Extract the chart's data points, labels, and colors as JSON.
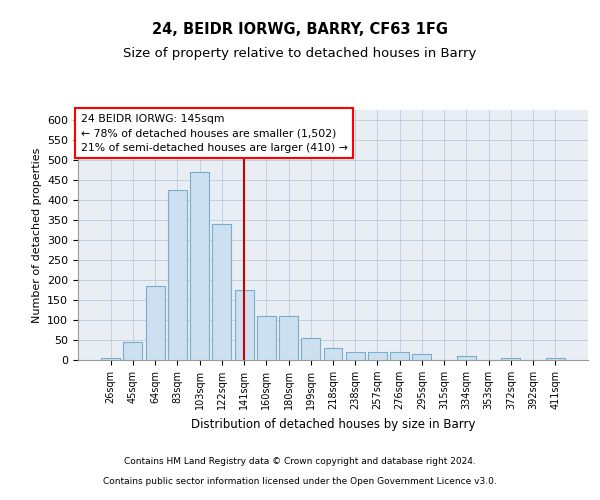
{
  "title1": "24, BEIDR IORWG, BARRY, CF63 1FG",
  "title2": "Size of property relative to detached houses in Barry",
  "xlabel": "Distribution of detached houses by size in Barry",
  "ylabel": "Number of detached properties",
  "categories": [
    "26sqm",
    "45sqm",
    "64sqm",
    "83sqm",
    "103sqm",
    "122sqm",
    "141sqm",
    "160sqm",
    "180sqm",
    "199sqm",
    "218sqm",
    "238sqm",
    "257sqm",
    "276sqm",
    "295sqm",
    "315sqm",
    "334sqm",
    "353sqm",
    "372sqm",
    "392sqm",
    "411sqm"
  ],
  "values": [
    5,
    45,
    185,
    425,
    470,
    340,
    175,
    110,
    110,
    55,
    30,
    20,
    20,
    20,
    15,
    0,
    10,
    0,
    5,
    0,
    5
  ],
  "bar_color": "#cce0f0",
  "bar_edge_color": "#7aadcc",
  "grid_color": "#bbccdd",
  "vline_x_index": 6,
  "vline_color": "#cc0000",
  "annotation_text_line1": "24 BEIDR IORWG: 145sqm",
  "annotation_text_line2": "← 78% of detached houses are smaller (1,502)",
  "annotation_text_line3": "21% of semi-detached houses are larger (410) →",
  "ylim": [
    0,
    625
  ],
  "yticks": [
    0,
    50,
    100,
    150,
    200,
    250,
    300,
    350,
    400,
    450,
    500,
    550,
    600
  ],
  "footer_line1": "Contains HM Land Registry data © Crown copyright and database right 2024.",
  "footer_line2": "Contains public sector information licensed under the Open Government Licence v3.0.",
  "bg_color": "#e8eef4"
}
